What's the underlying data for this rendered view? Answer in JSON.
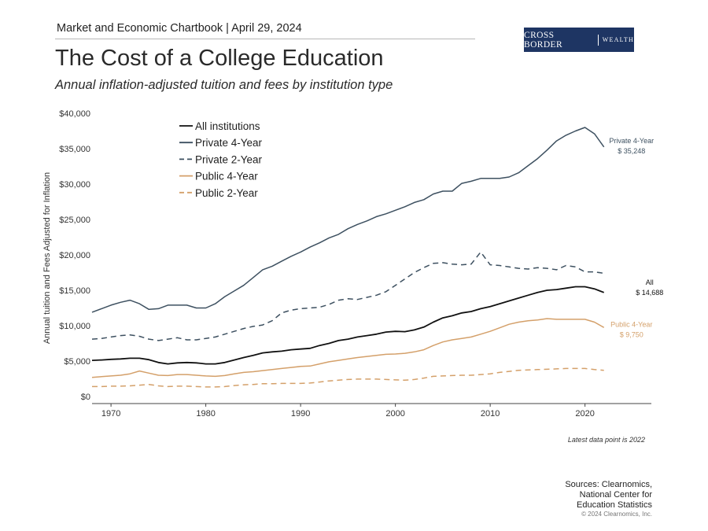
{
  "header": {
    "chartbook": "Market and Economic Chartbook | April 29, 2024",
    "logo_main": "CROSS BORDER",
    "logo_sub": "WEALTH"
  },
  "title": "The Cost of a College Education",
  "subtitle": "Annual inflation-adjusted tuition and fees by institution type",
  "note": "Latest data point is 2022",
  "sources": [
    "Sources: Clearnomics,",
    "National Center for",
    "Education Statistics"
  ],
  "copyright": "© 2024 Clearnomics, Inc.",
  "colors": {
    "black": "#111111",
    "navy": "#3d5060",
    "orange": "#d4a06a",
    "axis": "#444444",
    "logo_bg": "#1e3563"
  },
  "chart_data": {
    "type": "line",
    "ylabel": "Annual tuition and Fees Adjusted for Inflation",
    "xlabel": "",
    "ylim": [
      0,
      40000
    ],
    "xlim": [
      1968,
      2027
    ],
    "yticks": [
      0,
      5000,
      10000,
      15000,
      20000,
      25000,
      30000,
      35000,
      40000
    ],
    "ytick_labels": [
      "$0",
      "$5,000",
      "$10,000",
      "$15,000",
      "$20,000",
      "$25,000",
      "$30,000",
      "$35,000",
      "$40,000"
    ],
    "xticks": [
      1970,
      1980,
      1990,
      2000,
      2010,
      2020
    ],
    "xtick_labels": [
      "1970",
      "1980",
      "1990",
      "2000",
      "2010",
      "2020"
    ],
    "x": [
      1968,
      1969,
      1970,
      1971,
      1972,
      1973,
      1974,
      1975,
      1976,
      1977,
      1978,
      1979,
      1980,
      1981,
      1982,
      1983,
      1984,
      1985,
      1986,
      1987,
      1988,
      1989,
      1990,
      1991,
      1992,
      1993,
      1994,
      1995,
      1996,
      1997,
      1998,
      1999,
      2000,
      2001,
      2002,
      2003,
      2004,
      2005,
      2006,
      2007,
      2008,
      2009,
      2010,
      2011,
      2012,
      2013,
      2014,
      2015,
      2016,
      2017,
      2018,
      2019,
      2020,
      2021,
      2022
    ],
    "series": [
      {
        "name": "All institutions",
        "color": "#111111",
        "dash": "solid",
        "values": [
          5100,
          5150,
          5250,
          5300,
          5400,
          5400,
          5200,
          4800,
          4600,
          4750,
          4800,
          4750,
          4600,
          4600,
          4800,
          5150,
          5500,
          5800,
          6150,
          6300,
          6400,
          6600,
          6700,
          6800,
          7200,
          7500,
          7900,
          8100,
          8400,
          8600,
          8800,
          9100,
          9200,
          9150,
          9400,
          9800,
          10500,
          11100,
          11400,
          11800,
          12000,
          12400,
          12700,
          13100,
          13500,
          13900,
          14300,
          14700,
          15000,
          15100,
          15300,
          15500,
          15500,
          15200,
          14688
        ]
      },
      {
        "name": "Private 4-Year",
        "color": "#3d5060",
        "dash": "solid",
        "values": [
          11900,
          12400,
          12900,
          13300,
          13600,
          13100,
          12300,
          12400,
          12900,
          12900,
          12900,
          12500,
          12500,
          13100,
          14100,
          14900,
          15700,
          16800,
          17900,
          18400,
          19100,
          19800,
          20400,
          21100,
          21700,
          22400,
          22900,
          23700,
          24300,
          24800,
          25400,
          25800,
          26300,
          26800,
          27400,
          27800,
          28600,
          29000,
          29000,
          30100,
          30400,
          30800,
          30800,
          30800,
          31000,
          31600,
          32600,
          33600,
          34800,
          36100,
          36900,
          37500,
          38000,
          37100,
          35248
        ]
      },
      {
        "name": "Private 2-Year",
        "color": "#3d5060",
        "dash": "dashed",
        "values": [
          8100,
          8200,
          8400,
          8600,
          8700,
          8500,
          8100,
          7900,
          8100,
          8300,
          8000,
          8000,
          8200,
          8400,
          8800,
          9200,
          9600,
          9900,
          10100,
          10700,
          11800,
          12200,
          12400,
          12500,
          12600,
          13000,
          13600,
          13800,
          13700,
          14000,
          14300,
          14800,
          15700,
          16600,
          17500,
          18200,
          18800,
          18900,
          18700,
          18600,
          18700,
          20400,
          18600,
          18500,
          18300,
          18100,
          18000,
          18200,
          18100,
          17900,
          18500,
          18300,
          17600,
          17600,
          17400
        ]
      },
      {
        "name": "Public 4-Year",
        "color": "#d4a06a",
        "dash": "solid",
        "values": [
          2700,
          2800,
          2900,
          3000,
          3200,
          3600,
          3300,
          3000,
          2950,
          3100,
          3100,
          3000,
          2900,
          2850,
          2950,
          3200,
          3400,
          3500,
          3650,
          3800,
          3950,
          4100,
          4250,
          4300,
          4600,
          4900,
          5100,
          5300,
          5500,
          5650,
          5800,
          5950,
          6000,
          6100,
          6300,
          6600,
          7200,
          7700,
          8000,
          8200,
          8400,
          8800,
          9200,
          9700,
          10200,
          10500,
          10700,
          10800,
          11000,
          10900,
          10900,
          10900,
          10900,
          10500,
          9750
        ]
      },
      {
        "name": "Public 2-Year",
        "color": "#d4a06a",
        "dash": "dashed",
        "values": [
          1400,
          1400,
          1450,
          1450,
          1500,
          1600,
          1700,
          1500,
          1400,
          1450,
          1450,
          1400,
          1350,
          1350,
          1400,
          1550,
          1650,
          1700,
          1800,
          1800,
          1850,
          1850,
          1850,
          1900,
          2050,
          2200,
          2300,
          2400,
          2450,
          2450,
          2450,
          2400,
          2350,
          2300,
          2400,
          2600,
          2850,
          2900,
          2950,
          3000,
          3000,
          3100,
          3200,
          3400,
          3550,
          3700,
          3750,
          3800,
          3850,
          3900,
          3950,
          3950,
          3950,
          3800,
          3700
        ]
      }
    ],
    "end_labels": [
      {
        "series": "Private 4-Year",
        "name": "Private 4-Year",
        "value": "$ 35,248"
      },
      {
        "series": "All institutions",
        "name": "All",
        "value": "$ 14,688"
      },
      {
        "series": "Public 4-Year",
        "name": "Public 4-Year",
        "value": "$ 9,750"
      }
    ]
  }
}
